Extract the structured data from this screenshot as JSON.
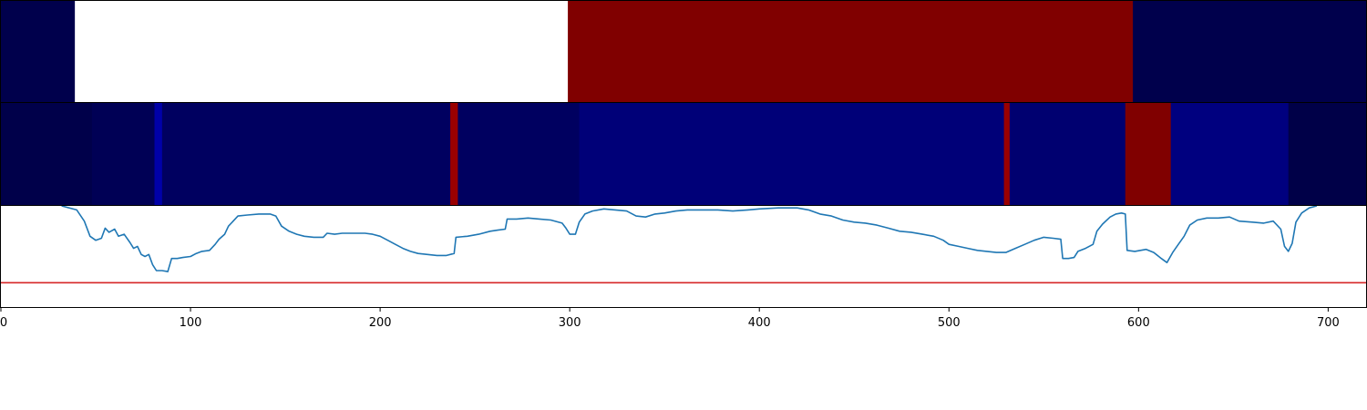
{
  "chart_data": {
    "type": "heatmap",
    "xlim": [
      0,
      720
    ],
    "x_ticks": [
      "0",
      "100",
      "200",
      "300",
      "400",
      "500",
      "600",
      "700"
    ],
    "x_tick_values": [
      0,
      100,
      200,
      300,
      400,
      500,
      600,
      700
    ],
    "heatmap_rows": [
      {
        "segments": [
          {
            "start": 0,
            "end": 39,
            "color": "#00004c"
          },
          {
            "start": 39,
            "end": 299,
            "color": "#ffffff"
          },
          {
            "start": 299,
            "end": 597,
            "color": "#800000"
          },
          {
            "start": 597,
            "end": 720,
            "color": "#00004c"
          }
        ]
      },
      {
        "segments": [
          {
            "start": 0,
            "end": 48,
            "color": "#00004a"
          },
          {
            "start": 48,
            "end": 81,
            "color": "#000055"
          },
          {
            "start": 81,
            "end": 85,
            "color": "#0000a8"
          },
          {
            "start": 85,
            "end": 237,
            "color": "#000060"
          },
          {
            "start": 237,
            "end": 241,
            "color": "#9a0000"
          },
          {
            "start": 241,
            "end": 305,
            "color": "#000060"
          },
          {
            "start": 305,
            "end": 529,
            "color": "#000078"
          },
          {
            "start": 529,
            "end": 532,
            "color": "#9a0000"
          },
          {
            "start": 532,
            "end": 593,
            "color": "#000070"
          },
          {
            "start": 593,
            "end": 617,
            "color": "#800000"
          },
          {
            "start": 617,
            "end": 679,
            "color": "#00007f"
          },
          {
            "start": 679,
            "end": 720,
            "color": "#000048"
          }
        ]
      }
    ],
    "line_series": {
      "color": "#1f77b4",
      "ylim": [
        0,
        1
      ],
      "points": [
        [
          32,
          1.0
        ],
        [
          40,
          0.96
        ],
        [
          44,
          0.85
        ],
        [
          47,
          0.7
        ],
        [
          50,
          0.66
        ],
        [
          53,
          0.68
        ],
        [
          55,
          0.78
        ],
        [
          57,
          0.74
        ],
        [
          60,
          0.77
        ],
        [
          62,
          0.7
        ],
        [
          65,
          0.72
        ],
        [
          68,
          0.64
        ],
        [
          70,
          0.58
        ],
        [
          72,
          0.6
        ],
        [
          74,
          0.52
        ],
        [
          76,
          0.5
        ],
        [
          78,
          0.52
        ],
        [
          80,
          0.42
        ],
        [
          82,
          0.36
        ],
        [
          85,
          0.36
        ],
        [
          88,
          0.35
        ],
        [
          90,
          0.48
        ],
        [
          93,
          0.48
        ],
        [
          96,
          0.49
        ],
        [
          100,
          0.5
        ],
        [
          103,
          0.53
        ],
        [
          106,
          0.55
        ],
        [
          110,
          0.56
        ],
        [
          113,
          0.62
        ],
        [
          115,
          0.67
        ],
        [
          118,
          0.72
        ],
        [
          120,
          0.8
        ],
        [
          125,
          0.9
        ],
        [
          130,
          0.91
        ],
        [
          136,
          0.92
        ],
        [
          142,
          0.92
        ],
        [
          145,
          0.9
        ],
        [
          148,
          0.8
        ],
        [
          152,
          0.75
        ],
        [
          156,
          0.72
        ],
        [
          160,
          0.7
        ],
        [
          165,
          0.69
        ],
        [
          170,
          0.69
        ],
        [
          172,
          0.73
        ],
        [
          176,
          0.72
        ],
        [
          180,
          0.73
        ],
        [
          186,
          0.73
        ],
        [
          192,
          0.73
        ],
        [
          196,
          0.72
        ],
        [
          200,
          0.7
        ],
        [
          204,
          0.66
        ],
        [
          208,
          0.62
        ],
        [
          212,
          0.58
        ],
        [
          216,
          0.55
        ],
        [
          220,
          0.53
        ],
        [
          225,
          0.52
        ],
        [
          230,
          0.51
        ],
        [
          235,
          0.51
        ],
        [
          239,
          0.53
        ],
        [
          240,
          0.69
        ],
        [
          246,
          0.7
        ],
        [
          252,
          0.72
        ],
        [
          258,
          0.75
        ],
        [
          262,
          0.76
        ],
        [
          266,
          0.77
        ],
        [
          267,
          0.87
        ],
        [
          272,
          0.87
        ],
        [
          278,
          0.88
        ],
        [
          284,
          0.87
        ],
        [
          290,
          0.86
        ],
        [
          296,
          0.83
        ],
        [
          298,
          0.78
        ],
        [
          300,
          0.72
        ],
        [
          303,
          0.72
        ],
        [
          305,
          0.84
        ],
        [
          308,
          0.92
        ],
        [
          312,
          0.95
        ],
        [
          318,
          0.97
        ],
        [
          324,
          0.96
        ],
        [
          330,
          0.95
        ],
        [
          335,
          0.9
        ],
        [
          340,
          0.89
        ],
        [
          345,
          0.92
        ],
        [
          350,
          0.93
        ],
        [
          356,
          0.95
        ],
        [
          362,
          0.96
        ],
        [
          370,
          0.96
        ],
        [
          378,
          0.96
        ],
        [
          386,
          0.95
        ],
        [
          394,
          0.96
        ],
        [
          400,
          0.97
        ],
        [
          410,
          0.98
        ],
        [
          420,
          0.98
        ],
        [
          426,
          0.96
        ],
        [
          432,
          0.92
        ],
        [
          438,
          0.9
        ],
        [
          444,
          0.86
        ],
        [
          450,
          0.84
        ],
        [
          456,
          0.83
        ],
        [
          462,
          0.81
        ],
        [
          468,
          0.78
        ],
        [
          474,
          0.75
        ],
        [
          480,
          0.74
        ],
        [
          486,
          0.72
        ],
        [
          492,
          0.7
        ],
        [
          497,
          0.66
        ],
        [
          500,
          0.62
        ],
        [
          505,
          0.6
        ],
        [
          510,
          0.58
        ],
        [
          515,
          0.56
        ],
        [
          520,
          0.55
        ],
        [
          525,
          0.54
        ],
        [
          530,
          0.54
        ],
        [
          535,
          0.58
        ],
        [
          540,
          0.62
        ],
        [
          545,
          0.66
        ],
        [
          550,
          0.69
        ],
        [
          555,
          0.68
        ],
        [
          559,
          0.67
        ],
        [
          560,
          0.48
        ],
        [
          563,
          0.48
        ],
        [
          566,
          0.49
        ],
        [
          568,
          0.55
        ],
        [
          572,
          0.58
        ],
        [
          576,
          0.62
        ],
        [
          578,
          0.75
        ],
        [
          581,
          0.82
        ],
        [
          585,
          0.89
        ],
        [
          588,
          0.92
        ],
        [
          591,
          0.93
        ],
        [
          593,
          0.92
        ],
        [
          594,
          0.56
        ],
        [
          598,
          0.55
        ],
        [
          604,
          0.57
        ],
        [
          608,
          0.54
        ],
        [
          612,
          0.48
        ],
        [
          615,
          0.44
        ],
        [
          618,
          0.54
        ],
        [
          621,
          0.62
        ],
        [
          624,
          0.7
        ],
        [
          627,
          0.81
        ],
        [
          631,
          0.86
        ],
        [
          636,
          0.88
        ],
        [
          642,
          0.88
        ],
        [
          648,
          0.89
        ],
        [
          653,
          0.85
        ],
        [
          660,
          0.84
        ],
        [
          666,
          0.83
        ],
        [
          671,
          0.85
        ],
        [
          675,
          0.77
        ],
        [
          677,
          0.6
        ],
        [
          679,
          0.55
        ],
        [
          681,
          0.63
        ],
        [
          683,
          0.84
        ],
        [
          686,
          0.93
        ],
        [
          690,
          0.98
        ],
        [
          694,
          1.0
        ]
      ]
    },
    "threshold_line": {
      "y": 0.24,
      "color": "#d62728"
    }
  }
}
